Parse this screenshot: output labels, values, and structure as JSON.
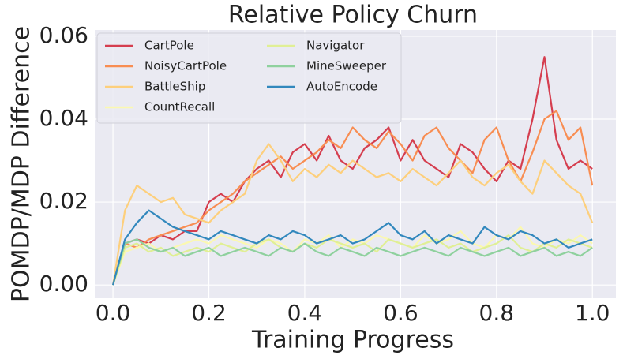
{
  "chart_data": {
    "type": "line",
    "title": "Relative Policy Churn",
    "x_label": "Training Progress",
    "y_label": "POMDP/MDP Difference",
    "x": [
      0,
      0.025,
      0.05,
      0.075,
      0.1,
      0.125,
      0.15,
      0.175,
      0.2,
      0.225,
      0.25,
      0.275,
      0.3,
      0.325,
      0.35,
      0.375,
      0.4,
      0.425,
      0.45,
      0.475,
      0.5,
      0.525,
      0.55,
      0.575,
      0.6,
      0.625,
      0.65,
      0.675,
      0.7,
      0.725,
      0.75,
      0.775,
      0.8,
      0.825,
      0.85,
      0.875,
      0.9,
      0.925,
      0.95,
      0.975,
      1.0
    ],
    "series": [
      {
        "name": "CartPole",
        "color": "#d53e4f",
        "values": [
          0,
          0.01,
          0.011,
          0.01,
          0.012,
          0.011,
          0.013,
          0.013,
          0.02,
          0.022,
          0.02,
          0.025,
          0.028,
          0.03,
          0.026,
          0.032,
          0.034,
          0.03,
          0.036,
          0.03,
          0.028,
          0.033,
          0.035,
          0.038,
          0.03,
          0.035,
          0.03,
          0.028,
          0.026,
          0.034,
          0.032,
          0.028,
          0.025,
          0.03,
          0.028,
          0.04,
          0.055,
          0.035,
          0.028,
          0.03,
          0.028
        ]
      },
      {
        "name": "NoisyCartPole",
        "color": "#f88d52",
        "values": [
          0,
          0.01,
          0.009,
          0.011,
          0.012,
          0.013,
          0.014,
          0.015,
          0.018,
          0.02,
          0.022,
          0.025,
          0.027,
          0.029,
          0.031,
          0.028,
          0.03,
          0.032,
          0.035,
          0.033,
          0.038,
          0.035,
          0.033,
          0.037,
          0.034,
          0.03,
          0.036,
          0.038,
          0.033,
          0.03,
          0.027,
          0.035,
          0.038,
          0.03,
          0.025,
          0.032,
          0.04,
          0.042,
          0.035,
          0.038,
          0.024
        ]
      },
      {
        "name": "BattleShip",
        "color": "#fdcf7c",
        "values": [
          0,
          0.018,
          0.024,
          0.022,
          0.02,
          0.021,
          0.017,
          0.016,
          0.015,
          0.018,
          0.02,
          0.022,
          0.03,
          0.034,
          0.03,
          0.025,
          0.028,
          0.026,
          0.029,
          0.027,
          0.03,
          0.028,
          0.026,
          0.027,
          0.025,
          0.028,
          0.026,
          0.024,
          0.027,
          0.03,
          0.026,
          0.024,
          0.027,
          0.029,
          0.025,
          0.022,
          0.03,
          0.027,
          0.024,
          0.022,
          0.015
        ]
      },
      {
        "name": "CountRecall",
        "color": "#fbf8b0",
        "values": [
          0,
          0.008,
          0.009,
          0.01,
          0.008,
          0.009,
          0.01,
          0.011,
          0.01,
          0.012,
          0.011,
          0.01,
          0.009,
          0.011,
          0.01,
          0.008,
          0.011,
          0.01,
          0.012,
          0.009,
          0.011,
          0.01,
          0.012,
          0.011,
          0.01,
          0.009,
          0.012,
          0.01,
          0.011,
          0.013,
          0.01,
          0.009,
          0.012,
          0.011,
          0.014,
          0.01,
          0.009,
          0.011,
          0.01,
          0.012,
          0.01
        ]
      },
      {
        "name": "Navigator",
        "color": "#e0ef95",
        "values": [
          0,
          0.009,
          0.01,
          0.008,
          0.009,
          0.007,
          0.008,
          0.009,
          0.008,
          0.01,
          0.009,
          0.008,
          0.01,
          0.011,
          0.009,
          0.008,
          0.01,
          0.009,
          0.011,
          0.01,
          0.009,
          0.01,
          0.008,
          0.011,
          0.01,
          0.009,
          0.01,
          0.011,
          0.009,
          0.01,
          0.008,
          0.009,
          0.01,
          0.012,
          0.009,
          0.008,
          0.01,
          0.009,
          0.011,
          0.01,
          0.009
        ]
      },
      {
        "name": "MineSweeper",
        "color": "#8fd19e",
        "values": [
          0,
          0.01,
          0.011,
          0.009,
          0.008,
          0.009,
          0.007,
          0.008,
          0.009,
          0.007,
          0.008,
          0.009,
          0.008,
          0.007,
          0.009,
          0.008,
          0.01,
          0.008,
          0.007,
          0.009,
          0.008,
          0.007,
          0.009,
          0.008,
          0.007,
          0.008,
          0.009,
          0.008,
          0.007,
          0.009,
          0.008,
          0.007,
          0.008,
          0.009,
          0.007,
          0.008,
          0.009,
          0.007,
          0.008,
          0.007,
          0.009
        ]
      },
      {
        "name": "AutoEncode",
        "color": "#3288bd",
        "values": [
          0,
          0.011,
          0.015,
          0.018,
          0.016,
          0.014,
          0.013,
          0.012,
          0.011,
          0.013,
          0.012,
          0.011,
          0.01,
          0.012,
          0.011,
          0.013,
          0.012,
          0.01,
          0.011,
          0.012,
          0.01,
          0.011,
          0.013,
          0.015,
          0.012,
          0.011,
          0.013,
          0.01,
          0.012,
          0.011,
          0.01,
          0.014,
          0.012,
          0.011,
          0.013,
          0.012,
          0.01,
          0.011,
          0.009,
          0.01,
          0.011
        ]
      }
    ],
    "xlim": [
      -0.038,
      1.049
    ],
    "ylim": [
      -0.0032,
      0.0615
    ],
    "xticks": [
      {
        "value": 0,
        "label": "0.0"
      },
      {
        "value": 0.2,
        "label": "0.2"
      },
      {
        "value": 0.4,
        "label": "0.4"
      },
      {
        "value": 0.6,
        "label": "0.6"
      },
      {
        "value": 0.8,
        "label": "0.8"
      },
      {
        "value": 1.0,
        "label": "1.0"
      }
    ],
    "yticks": [
      {
        "value": 0,
        "label": "0.00"
      },
      {
        "value": 0.02,
        "label": "0.02"
      },
      {
        "value": 0.04,
        "label": "0.04"
      },
      {
        "value": 0.06,
        "label": "0.06"
      }
    ],
    "grid": true,
    "legend": "upper-left"
  }
}
